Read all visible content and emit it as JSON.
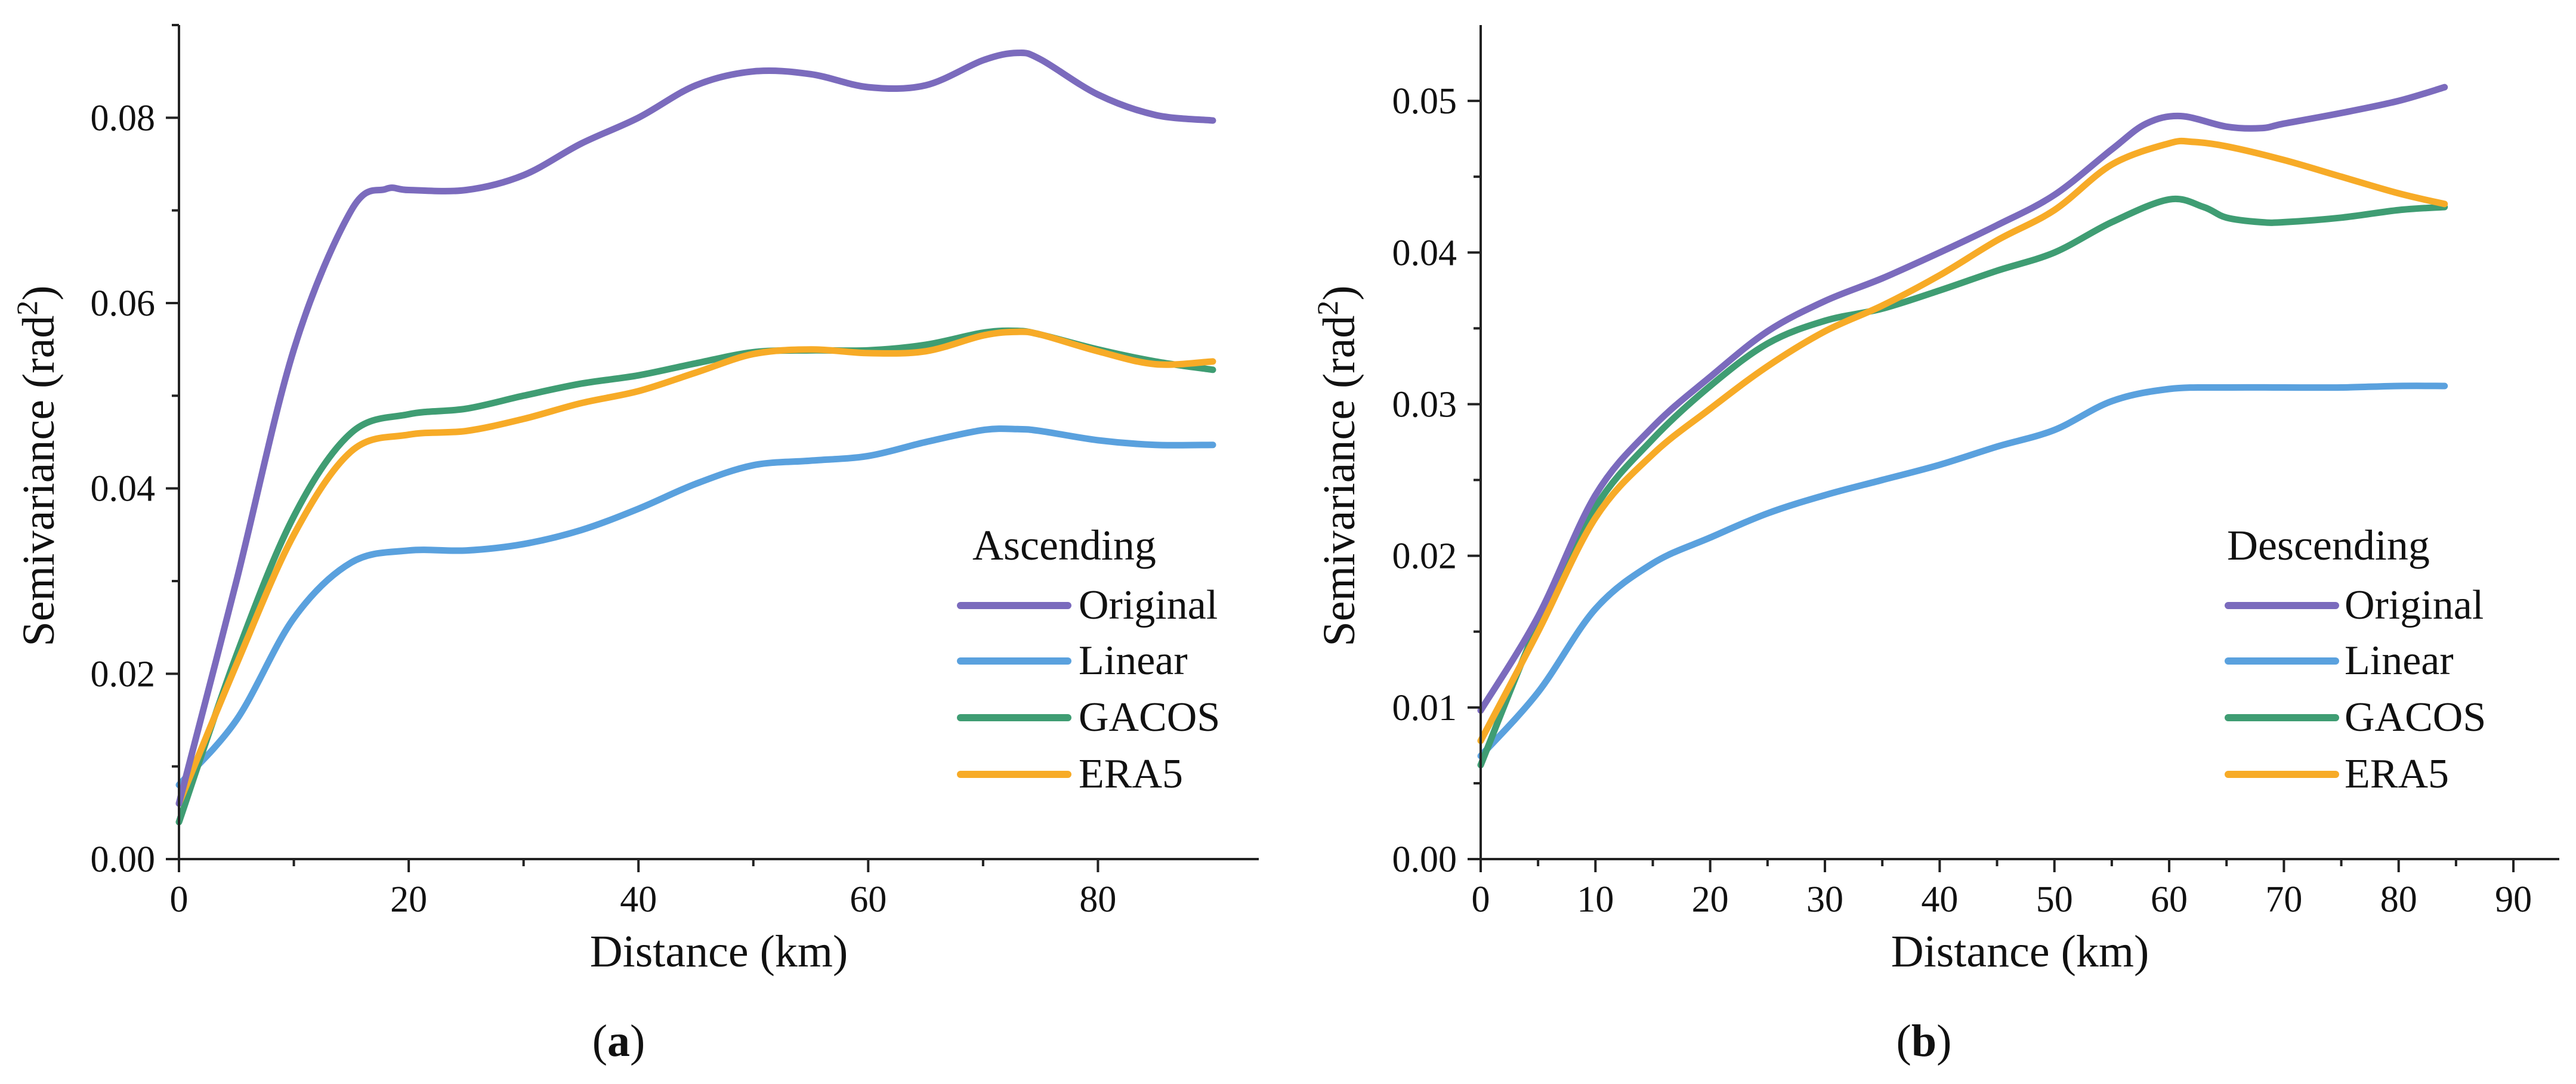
{
  "colors": {
    "Original": "#7b6bbd",
    "Linear": "#5aa1de",
    "GACOS": "#3f9d73",
    "ERA5": "#f7ab27"
  },
  "chart_data": [
    {
      "type": "line",
      "id": "a",
      "panel_label_open": "(",
      "panel_label_letter": "a",
      "panel_label_close": ")",
      "xlabel": "Distance (km)",
      "ylabel": "Semivariance (rad",
      "ylabel_sup": "2",
      "ylabel_close": ")",
      "xlim": [
        0,
        94
      ],
      "ylim": [
        0,
        0.09
      ],
      "xticks": [
        0,
        20,
        40,
        60,
        80
      ],
      "xtick_labels": [
        "0",
        "20",
        "40",
        "60",
        "80"
      ],
      "yticks": [
        0,
        0.02,
        0.04,
        0.06,
        0.08
      ],
      "ytick_labels": [
        "0.00",
        "0.02",
        "0.04",
        "0.06",
        "0.08"
      ],
      "legend_title": "Ascending",
      "legend_position": "lower-right",
      "series": [
        {
          "name": "Original",
          "x": [
            0,
            5,
            10,
            15,
            18,
            20,
            25,
            30,
            35,
            40,
            45,
            50,
            55,
            60,
            65,
            70,
            73,
            75,
            80,
            85,
            90
          ],
          "y": [
            0.006,
            0.03,
            0.055,
            0.07,
            0.0723,
            0.0722,
            0.0722,
            0.0738,
            0.0772,
            0.08,
            0.0835,
            0.085,
            0.0847,
            0.0833,
            0.0835,
            0.0862,
            0.087,
            0.0863,
            0.0825,
            0.0803,
            0.0797
          ]
        },
        {
          "name": "Linear",
          "x": [
            0,
            5,
            10,
            15,
            20,
            25,
            30,
            35,
            40,
            45,
            50,
            55,
            60,
            65,
            70,
            73,
            75,
            80,
            85,
            90
          ],
          "y": [
            0.008,
            0.015,
            0.026,
            0.032,
            0.0333,
            0.0333,
            0.034,
            0.0355,
            0.0378,
            0.0405,
            0.0425,
            0.043,
            0.0435,
            0.045,
            0.0463,
            0.0464,
            0.0462,
            0.0452,
            0.0447,
            0.0447
          ]
        },
        {
          "name": "GACOS",
          "x": [
            0,
            5,
            10,
            15,
            20,
            25,
            30,
            35,
            40,
            45,
            50,
            55,
            60,
            65,
            70,
            73,
            75,
            80,
            85,
            90
          ],
          "y": [
            0.004,
            0.022,
            0.037,
            0.046,
            0.048,
            0.0486,
            0.05,
            0.0513,
            0.0522,
            0.0535,
            0.0547,
            0.0549,
            0.0549,
            0.0555,
            0.0568,
            0.057,
            0.0566,
            0.055,
            0.0537,
            0.0528
          ]
        },
        {
          "name": "ERA5",
          "x": [
            0,
            5,
            10,
            15,
            20,
            25,
            30,
            35,
            40,
            45,
            50,
            55,
            60,
            65,
            70,
            73,
            75,
            80,
            85,
            90
          ],
          "y": [
            0.006,
            0.021,
            0.035,
            0.044,
            0.0458,
            0.0462,
            0.0475,
            0.0492,
            0.0505,
            0.0525,
            0.0545,
            0.055,
            0.0546,
            0.0548,
            0.0565,
            0.0569,
            0.0566,
            0.0548,
            0.0534,
            0.0537
          ]
        }
      ]
    },
    {
      "type": "line",
      "id": "b",
      "panel_label_open": "(",
      "panel_label_letter": "b",
      "panel_label_close": ")",
      "xlabel": "Distance (km)",
      "ylabel": "Semivariance (rad",
      "ylabel_sup": "2",
      "ylabel_close": ")",
      "xlim": [
        0,
        94
      ],
      "ylim": [
        0,
        0.055
      ],
      "xticks": [
        0,
        10,
        20,
        30,
        40,
        50,
        60,
        70,
        80,
        90
      ],
      "xtick_labels": [
        "0",
        "10",
        "20",
        "30",
        "40",
        "50",
        "60",
        "70",
        "80",
        "90"
      ],
      "yticks": [
        0,
        0.01,
        0.02,
        0.03,
        0.04,
        0.05
      ],
      "ytick_labels": [
        "0.00",
        "0.01",
        "0.02",
        "0.03",
        "0.04",
        "0.05"
      ],
      "legend_title": "Descending",
      "legend_position": "lower-right",
      "series": [
        {
          "name": "Original",
          "x": [
            0,
            5,
            10,
            15,
            20,
            25,
            30,
            35,
            40,
            45,
            50,
            55,
            58,
            61,
            65,
            68,
            70,
            75,
            80,
            84
          ],
          "y": [
            0.0098,
            0.016,
            0.024,
            0.0285,
            0.0318,
            0.0348,
            0.0368,
            0.0383,
            0.04,
            0.0418,
            0.0438,
            0.0468,
            0.0485,
            0.049,
            0.0483,
            0.0482,
            0.0485,
            0.0492,
            0.05,
            0.0509
          ]
        },
        {
          "name": "Linear",
          "x": [
            0,
            5,
            10,
            15,
            20,
            25,
            30,
            35,
            40,
            45,
            50,
            55,
            60,
            65,
            70,
            75,
            80,
            84
          ],
          "y": [
            0.0068,
            0.011,
            0.0165,
            0.0195,
            0.0212,
            0.0228,
            0.024,
            0.025,
            0.026,
            0.0272,
            0.0283,
            0.0302,
            0.031,
            0.0311,
            0.0311,
            0.0311,
            0.0312,
            0.0312
          ]
        },
        {
          "name": "GACOS",
          "x": [
            0,
            5,
            10,
            15,
            20,
            25,
            30,
            35,
            40,
            45,
            50,
            55,
            60,
            63,
            65,
            68,
            70,
            75,
            80,
            84
          ],
          "y": [
            0.0062,
            0.0155,
            0.0232,
            0.0277,
            0.0312,
            0.034,
            0.0355,
            0.0363,
            0.0375,
            0.0388,
            0.04,
            0.042,
            0.0435,
            0.043,
            0.0423,
            0.042,
            0.042,
            0.0423,
            0.0428,
            0.043
          ]
        },
        {
          "name": "ERA5",
          "x": [
            0,
            5,
            10,
            15,
            20,
            25,
            30,
            35,
            40,
            45,
            50,
            55,
            60,
            62,
            65,
            70,
            75,
            80,
            84
          ],
          "y": [
            0.0078,
            0.015,
            0.0225,
            0.0267,
            0.0297,
            0.0325,
            0.0348,
            0.0365,
            0.0385,
            0.0408,
            0.0428,
            0.0458,
            0.0472,
            0.0473,
            0.047,
            0.0461,
            0.045,
            0.0439,
            0.0432
          ]
        }
      ]
    }
  ]
}
